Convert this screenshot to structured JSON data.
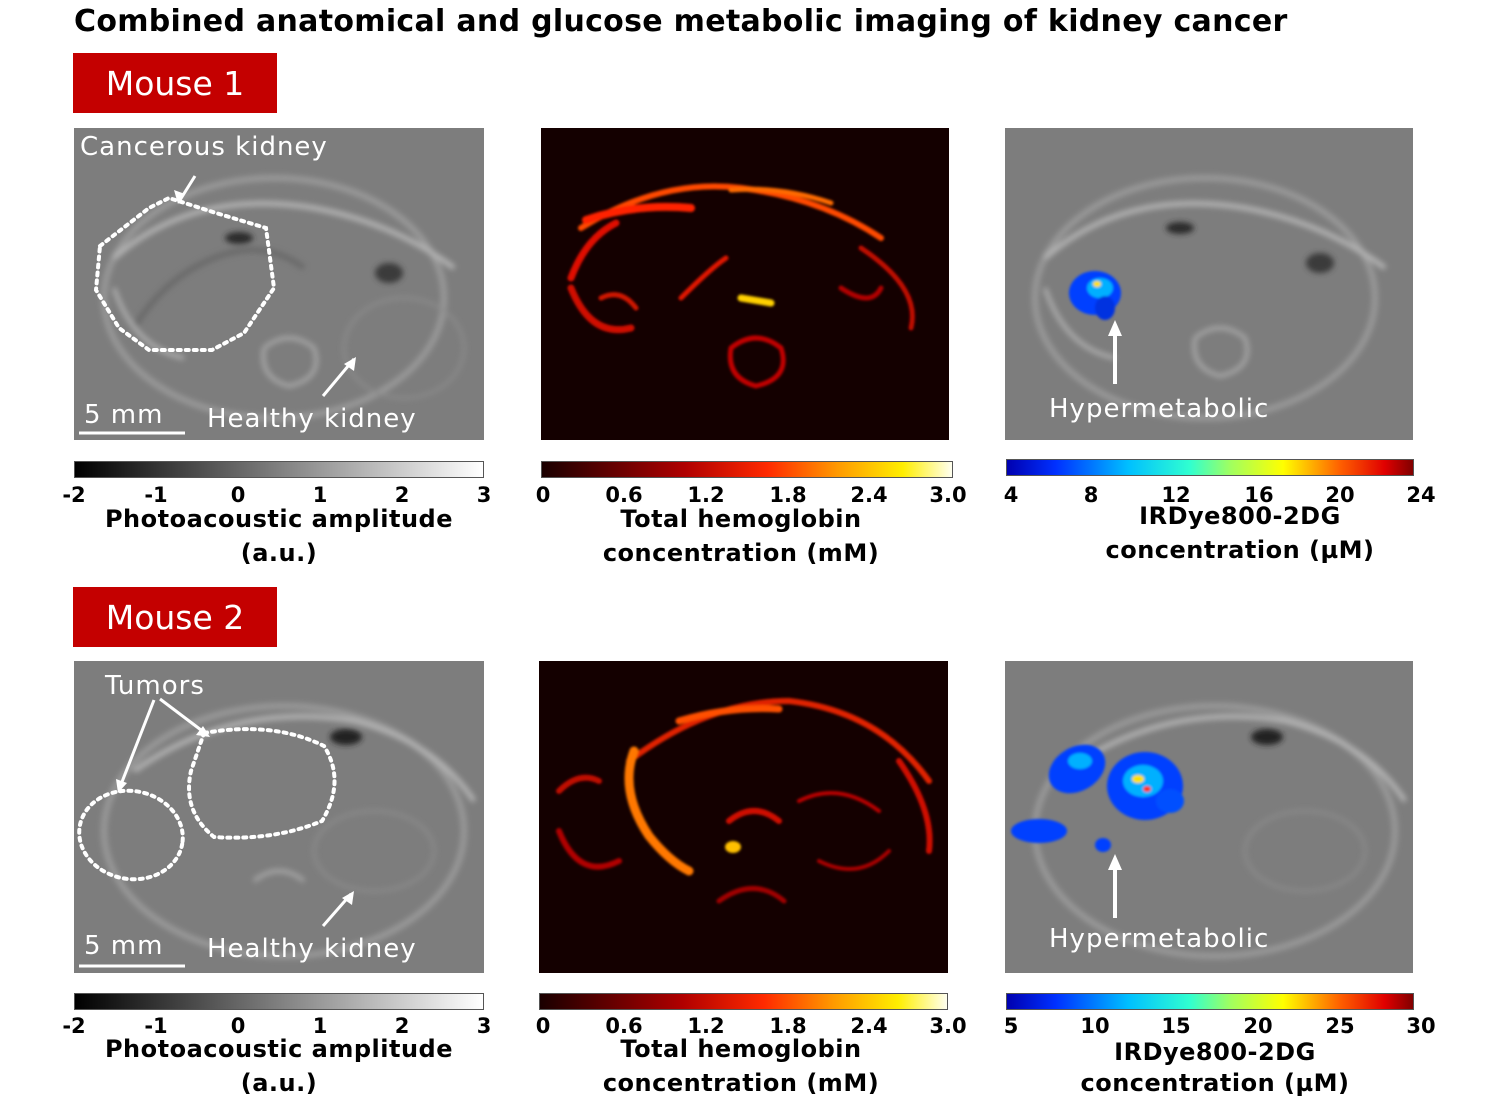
{
  "title": "Combined anatomical and glucose metabolic imaging of kidney cancer",
  "mouse1": {
    "label": "Mouse 1",
    "panel1": {
      "annotation": "Cancerous kidney",
      "healthy": "Healthy kidney",
      "scale": "5 mm"
    },
    "panel3": {
      "annotation": "Hypermetabolic"
    },
    "cb1": {
      "ticks": [
        "-2",
        "-1",
        "0",
        "1",
        "2",
        "3"
      ],
      "label_line1": "Photoacoustic amplitude",
      "label_line2": "(a.u.)"
    },
    "cb2": {
      "ticks": [
        "0",
        "0.6",
        "1.2",
        "1.8",
        "2.4",
        "3.0"
      ],
      "label_line1": "Total hemoglobin",
      "label_line2": "concentration (mM)"
    },
    "cb3": {
      "ticks": [
        "4",
        "8",
        "12",
        "16",
        "20",
        "24"
      ],
      "label_line1": "IRDye800-2DG",
      "label_line2": "concentration (µM)"
    }
  },
  "mouse2": {
    "label": "Mouse 2",
    "panel1": {
      "annotation": "Tumors",
      "healthy": "Healthy kidney",
      "scale": "5 mm"
    },
    "panel3": {
      "annotation": "Hypermetabolic"
    },
    "cb1": {
      "ticks": [
        "-2",
        "-1",
        "0",
        "1",
        "2",
        "3"
      ],
      "label_line1": "Photoacoustic amplitude",
      "label_line2": "(a.u.)"
    },
    "cb2": {
      "ticks": [
        "0",
        "0.6",
        "1.2",
        "1.8",
        "2.4",
        "3.0"
      ],
      "label_line1": "Total hemoglobin",
      "label_line2": "concentration (mM)"
    },
    "cb3": {
      "ticks": [
        "5",
        "10",
        "15",
        "20",
        "25",
        "30"
      ],
      "label_line1": "IRDye800-2DG",
      "label_line2": "concentration (µM)"
    }
  },
  "colors": {
    "label_bg": "#c40000",
    "gray_panel": "#808080",
    "hemoglobin_bg": "#140000"
  }
}
